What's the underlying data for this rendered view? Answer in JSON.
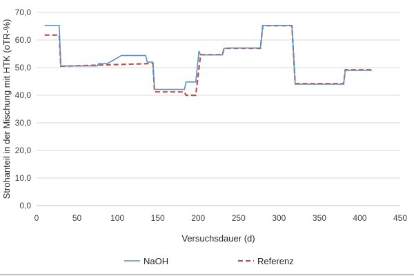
{
  "chart_data": {
    "type": "line",
    "title": "",
    "xlabel": "Versuchsdauer (d)",
    "ylabel": "Strohanteil in der Mischung mit HTK (oTR-%)",
    "xlim": [
      0,
      450
    ],
    "ylim": [
      0,
      70
    ],
    "x_ticks": [
      0,
      50,
      100,
      150,
      200,
      250,
      300,
      350,
      400,
      450
    ],
    "x_tick_labels": [
      "0",
      "50",
      "100",
      "150",
      "200",
      "250",
      "300",
      "350",
      "400",
      "450"
    ],
    "y_ticks": [
      0,
      10,
      20,
      30,
      40,
      50,
      60,
      70
    ],
    "y_tick_labels": [
      "0,0",
      "10,0",
      "20,0",
      "30,0",
      "40,0",
      "50,0",
      "60,0",
      "70,0"
    ],
    "grid": "horizontal",
    "legend_position": "bottom",
    "series": [
      {
        "name": "NaOH",
        "color": "#5b8fbf",
        "style": "solid",
        "x": [
          10,
          28,
          30,
          75,
          77,
          88,
          105,
          135,
          137,
          144,
          146,
          183,
          185,
          197,
          201,
          203,
          230,
          232,
          240,
          277,
          280,
          316,
          320,
          380,
          382,
          415
        ],
        "y": [
          65.3,
          65.3,
          50.6,
          50.6,
          51.5,
          51.5,
          54.4,
          54.4,
          52.0,
          52.0,
          42.1,
          42.1,
          44.8,
          44.8,
          56.0,
          54.6,
          54.6,
          57.0,
          57.1,
          57.1,
          65.3,
          65.3,
          44.0,
          44.0,
          49.0,
          49.0
        ]
      },
      {
        "name": "Referenz",
        "color": "#c0504d",
        "style": "dashed",
        "x": [
          10,
          28,
          30,
          144,
          146,
          183,
          185,
          197,
          203,
          230,
          232,
          277,
          280,
          316,
          320,
          380,
          382,
          415
        ],
        "y": [
          61.8,
          61.8,
          50.5,
          51.5,
          41.2,
          41.2,
          40.0,
          40.0,
          54.7,
          54.7,
          57.0,
          57.0,
          65.2,
          65.2,
          44.2,
          44.2,
          49.2,
          49.2
        ]
      }
    ]
  }
}
